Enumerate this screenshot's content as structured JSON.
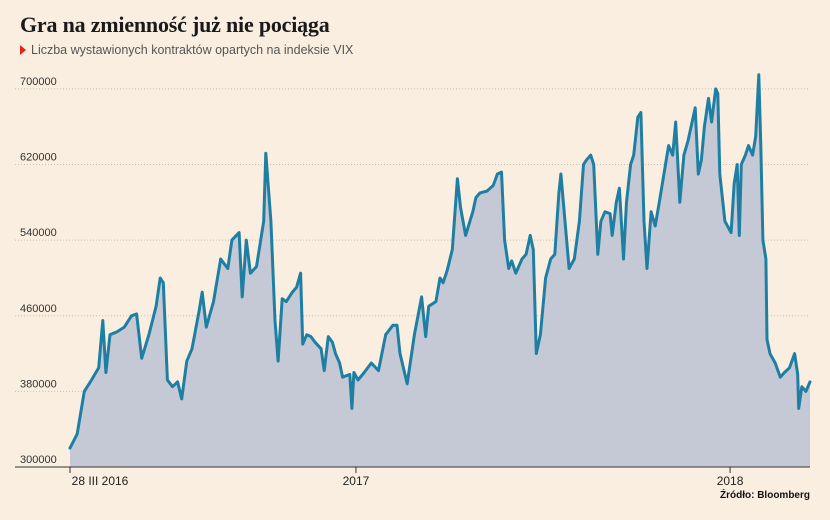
{
  "title": "Gra na zmienność już nie pociąga",
  "subtitle": "Liczba wystawionych kontraktów opartych na indeksie VIX",
  "source": "Źródło: Bloomberg",
  "colors": {
    "line": "#1f7fa3",
    "area": "#c5c9d6",
    "grid": "#c9c0b4",
    "axis": "#333333",
    "marker": "#e2241a",
    "background": "#faeee0"
  },
  "chart_data": {
    "type": "area",
    "title": "Gra na zmienność już nie pociąga",
    "subtitle": "Liczba wystawionych kontraktów opartych na indeksie VIX",
    "xlabel": "",
    "ylabel": "",
    "ylim": [
      300000,
      720000
    ],
    "yticks": [
      300000,
      380000,
      460000,
      540000,
      620000,
      700000
    ],
    "xticks": [
      {
        "label": "28 III 2016",
        "x": "2016-03-28"
      },
      {
        "label": "2017",
        "x": "2017-01-01"
      },
      {
        "label": "2018",
        "x": "2018-01-01"
      }
    ],
    "xlim": [
      "2016-03-28",
      "2018-03-20"
    ],
    "grid": true,
    "series": [
      {
        "values": [
          [
            "2016-03-28",
            320000
          ],
          [
            "2016-04-04",
            335000
          ],
          [
            "2016-04-11",
            380000
          ],
          [
            "2016-04-18",
            392000
          ],
          [
            "2016-04-25",
            405000
          ],
          [
            "2016-04-29",
            455000
          ],
          [
            "2016-05-02",
            400000
          ],
          [
            "2016-05-06",
            440000
          ],
          [
            "2016-05-13",
            443000
          ],
          [
            "2016-05-20",
            448000
          ],
          [
            "2016-05-27",
            460000
          ],
          [
            "2016-06-01",
            462000
          ],
          [
            "2016-06-06",
            415000
          ],
          [
            "2016-06-13",
            440000
          ],
          [
            "2016-06-20",
            470000
          ],
          [
            "2016-06-24",
            500000
          ],
          [
            "2016-06-27",
            495000
          ],
          [
            "2016-07-01",
            392000
          ],
          [
            "2016-07-06",
            385000
          ],
          [
            "2016-07-11",
            390000
          ],
          [
            "2016-07-15",
            372000
          ],
          [
            "2016-07-20",
            412000
          ],
          [
            "2016-07-25",
            425000
          ],
          [
            "2016-08-01",
            465000
          ],
          [
            "2016-08-04",
            485000
          ],
          [
            "2016-08-08",
            448000
          ],
          [
            "2016-08-15",
            475000
          ],
          [
            "2016-08-22",
            520000
          ],
          [
            "2016-08-29",
            510000
          ],
          [
            "2016-09-02",
            540000
          ],
          [
            "2016-09-09",
            548000
          ],
          [
            "2016-09-12",
            480000
          ],
          [
            "2016-09-16",
            540000
          ],
          [
            "2016-09-20",
            505000
          ],
          [
            "2016-09-26",
            512000
          ],
          [
            "2016-10-03",
            560000
          ],
          [
            "2016-10-05",
            632000
          ],
          [
            "2016-10-10",
            560000
          ],
          [
            "2016-10-14",
            455000
          ],
          [
            "2016-10-17",
            412000
          ],
          [
            "2016-10-21",
            478000
          ],
          [
            "2016-10-25",
            475000
          ],
          [
            "2016-10-31",
            485000
          ],
          [
            "2016-11-04",
            490000
          ],
          [
            "2016-11-08",
            505000
          ],
          [
            "2016-11-10",
            430000
          ],
          [
            "2016-11-14",
            440000
          ],
          [
            "2016-11-18",
            438000
          ],
          [
            "2016-11-22",
            432000
          ],
          [
            "2016-11-28",
            425000
          ],
          [
            "2016-12-01",
            402000
          ],
          [
            "2016-12-05",
            438000
          ],
          [
            "2016-12-09",
            432000
          ],
          [
            "2016-12-12",
            420000
          ],
          [
            "2016-12-16",
            410000
          ],
          [
            "2016-12-19",
            395000
          ],
          [
            "2016-12-26",
            398000
          ],
          [
            "2016-12-28",
            362000
          ],
          [
            "2016-12-30",
            400000
          ],
          [
            "2017-01-03",
            392000
          ],
          [
            "2017-01-09",
            400000
          ],
          [
            "2017-01-16",
            410000
          ],
          [
            "2017-01-23",
            402000
          ],
          [
            "2017-01-30",
            440000
          ],
          [
            "2017-02-06",
            450000
          ],
          [
            "2017-02-10",
            450000
          ],
          [
            "2017-02-13",
            420000
          ],
          [
            "2017-02-20",
            388000
          ],
          [
            "2017-02-27",
            440000
          ],
          [
            "2017-03-06",
            480000
          ],
          [
            "2017-03-10",
            438000
          ],
          [
            "2017-03-13",
            470000
          ],
          [
            "2017-03-20",
            475000
          ],
          [
            "2017-03-24",
            500000
          ],
          [
            "2017-03-27",
            495000
          ],
          [
            "2017-03-31",
            508000
          ],
          [
            "2017-04-05",
            530000
          ],
          [
            "2017-04-10",
            605000
          ],
          [
            "2017-04-13",
            575000
          ],
          [
            "2017-04-18",
            545000
          ],
          [
            "2017-04-25",
            570000
          ],
          [
            "2017-04-28",
            585000
          ],
          [
            "2017-05-02",
            590000
          ],
          [
            "2017-05-09",
            592000
          ],
          [
            "2017-05-15",
            598000
          ],
          [
            "2017-05-19",
            610000
          ],
          [
            "2017-05-23",
            612000
          ],
          [
            "2017-05-26",
            540000
          ],
          [
            "2017-05-30",
            510000
          ],
          [
            "2017-06-02",
            518000
          ],
          [
            "2017-06-06",
            505000
          ],
          [
            "2017-06-12",
            520000
          ],
          [
            "2017-06-16",
            525000
          ],
          [
            "2017-06-20",
            545000
          ],
          [
            "2017-06-23",
            530000
          ],
          [
            "2017-06-26",
            420000
          ],
          [
            "2017-06-30",
            440000
          ],
          [
            "2017-07-05",
            500000
          ],
          [
            "2017-07-10",
            520000
          ],
          [
            "2017-07-14",
            525000
          ],
          [
            "2017-07-18",
            590000
          ],
          [
            "2017-07-20",
            610000
          ],
          [
            "2017-07-24",
            560000
          ],
          [
            "2017-07-28",
            510000
          ],
          [
            "2017-08-02",
            520000
          ],
          [
            "2017-08-07",
            560000
          ],
          [
            "2017-08-11",
            620000
          ],
          [
            "2017-08-14",
            625000
          ],
          [
            "2017-08-18",
            630000
          ],
          [
            "2017-08-21",
            620000
          ],
          [
            "2017-08-25",
            525000
          ],
          [
            "2017-08-28",
            560000
          ],
          [
            "2017-09-01",
            570000
          ],
          [
            "2017-09-06",
            568000
          ],
          [
            "2017-09-08",
            545000
          ],
          [
            "2017-09-12",
            580000
          ],
          [
            "2017-09-15",
            595000
          ],
          [
            "2017-09-19",
            520000
          ],
          [
            "2017-09-22",
            580000
          ],
          [
            "2017-09-26",
            620000
          ],
          [
            "2017-09-29",
            630000
          ],
          [
            "2017-10-03",
            670000
          ],
          [
            "2017-10-06",
            675000
          ],
          [
            "2017-10-09",
            560000
          ],
          [
            "2017-10-12",
            510000
          ],
          [
            "2017-10-16",
            570000
          ],
          [
            "2017-10-20",
            555000
          ],
          [
            "2017-10-24",
            580000
          ],
          [
            "2017-10-30",
            620000
          ],
          [
            "2017-11-02",
            640000
          ],
          [
            "2017-11-06",
            630000
          ],
          [
            "2017-11-09",
            665000
          ],
          [
            "2017-11-13",
            580000
          ],
          [
            "2017-11-17",
            630000
          ],
          [
            "2017-11-21",
            645000
          ],
          [
            "2017-11-24",
            660000
          ],
          [
            "2017-11-28",
            680000
          ],
          [
            "2017-12-01",
            610000
          ],
          [
            "2017-12-04",
            625000
          ],
          [
            "2017-12-07",
            660000
          ],
          [
            "2017-12-11",
            690000
          ],
          [
            "2017-12-14",
            665000
          ],
          [
            "2017-12-18",
            700000
          ],
          [
            "2017-12-20",
            695000
          ],
          [
            "2017-12-22",
            610000
          ],
          [
            "2017-12-27",
            560000
          ],
          [
            "2018-01-02",
            548000
          ],
          [
            "2018-01-05",
            600000
          ],
          [
            "2018-01-08",
            620000
          ],
          [
            "2018-01-10",
            545000
          ],
          [
            "2018-01-12",
            620000
          ],
          [
            "2018-01-16",
            630000
          ],
          [
            "2018-01-19",
            640000
          ],
          [
            "2018-01-23",
            630000
          ],
          [
            "2018-01-26",
            650000
          ],
          [
            "2018-01-29",
            715000
          ],
          [
            "2018-01-31",
            640000
          ],
          [
            "2018-02-02",
            540000
          ],
          [
            "2018-02-05",
            520000
          ],
          [
            "2018-02-06",
            435000
          ],
          [
            "2018-02-09",
            420000
          ],
          [
            "2018-02-14",
            410000
          ],
          [
            "2018-02-19",
            395000
          ],
          [
            "2018-02-23",
            400000
          ],
          [
            "2018-02-28",
            405000
          ],
          [
            "2018-03-05",
            420000
          ],
          [
            "2018-03-08",
            398000
          ],
          [
            "2018-03-09",
            362000
          ],
          [
            "2018-03-12",
            385000
          ],
          [
            "2018-03-16",
            380000
          ],
          [
            "2018-03-20",
            390000
          ]
        ]
      }
    ]
  }
}
